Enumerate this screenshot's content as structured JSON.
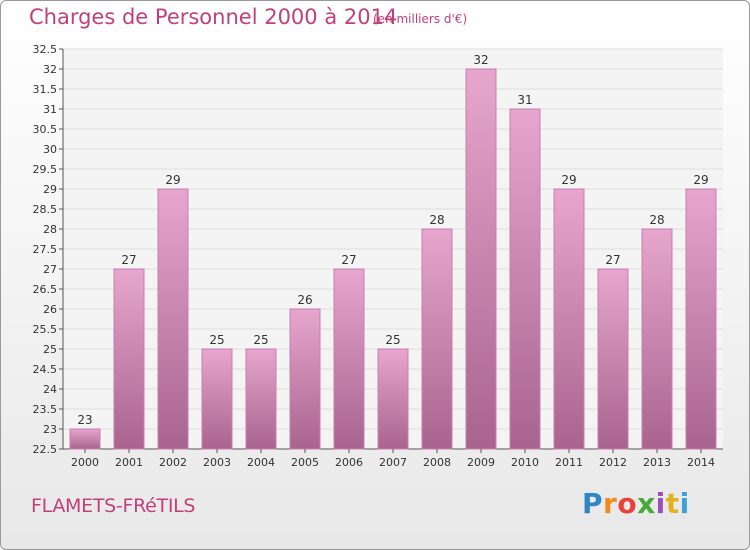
{
  "header": {
    "title": "Charges de Personnel 2000 à 2014",
    "unit": "(en milliers d'€)"
  },
  "footer": {
    "city": "FLAMETS-FRéTILS",
    "brand": {
      "letters": [
        "P",
        "r",
        "o",
        "x",
        "i",
        "t",
        "i"
      ],
      "colors": [
        "#2e86c8",
        "#f08a1d",
        "#e8423a",
        "#4aa83a",
        "#9c4fb8",
        "#e0b21f",
        "#3fa0d8"
      ]
    }
  },
  "colors": {
    "accent": "#c2407a",
    "bar_top": "#e7a6ce",
    "bar_bottom": "#a8648e",
    "bar_edge": "#c67fab",
    "plot_bg": "#f4f4f4",
    "grid": "#dedede"
  },
  "chart_data": {
    "type": "bar",
    "categories": [
      "2000",
      "2001",
      "2002",
      "2003",
      "2004",
      "2005",
      "2006",
      "2007",
      "2008",
      "2009",
      "2010",
      "2011",
      "2012",
      "2013",
      "2014"
    ],
    "values": [
      23,
      27,
      29,
      25,
      25,
      26,
      27,
      25,
      28,
      32,
      31,
      29,
      27,
      28,
      29
    ],
    "labels": [
      "23",
      "27",
      "29",
      "25",
      "25",
      "26",
      "27",
      "25",
      "28",
      "32",
      "31",
      "29",
      "27",
      "28",
      "29"
    ],
    "yticks": [
      "22.5",
      "23",
      "23.5",
      "24",
      "24.5",
      "25",
      "25.5",
      "26",
      "26.5",
      "27",
      "27.5",
      "28",
      "28.5",
      "29",
      "29.5",
      "30",
      "30.5",
      "31",
      "31.5",
      "32",
      "32.5"
    ],
    "ylim": [
      22.5,
      32.5
    ],
    "grid": true
  }
}
